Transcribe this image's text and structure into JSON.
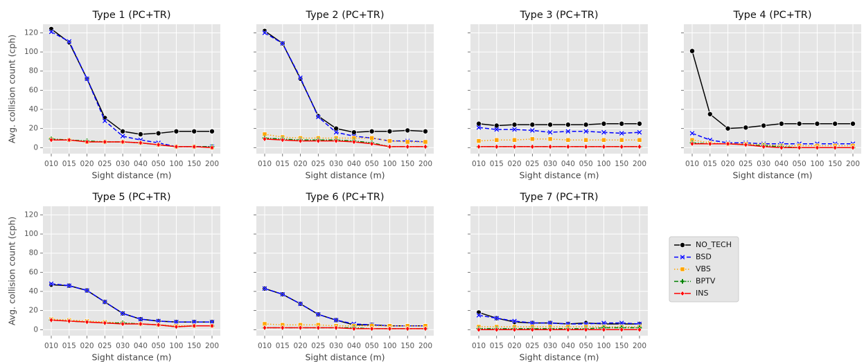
{
  "chart_data": [
    {
      "type": "line",
      "title": "Type 1 (PC+TR)",
      "xlabel": "Sight distance (m)",
      "ylabel": "Avg. collision count (cph)",
      "categories": [
        "010",
        "015",
        "020",
        "025",
        "030",
        "040",
        "050",
        "100",
        "150",
        "200"
      ],
      "ylim": [
        -6.3,
        129
      ],
      "yticks": [
        0,
        20,
        40,
        60,
        80,
        100,
        120
      ],
      "grid": true,
      "series": [
        {
          "name": "NO_TECH",
          "color": "#000000",
          "marker": "circle",
          "linestyle": "solid",
          "values": [
            124,
            110,
            72,
            31,
            17,
            14,
            15,
            17,
            17,
            17
          ]
        },
        {
          "name": "BSD",
          "color": "#0000ff",
          "marker": "x",
          "linestyle": "dashed",
          "values": [
            121,
            111,
            72,
            28,
            12,
            8,
            5,
            1,
            1,
            1
          ]
        },
        {
          "name": "VBS",
          "color": "#ffa500",
          "marker": "square",
          "linestyle": "dotted",
          "values": [
            9,
            8,
            6,
            6,
            6,
            5,
            3,
            1,
            1,
            0
          ]
        },
        {
          "name": "BPTV",
          "color": "#008000",
          "marker": "plus",
          "linestyle": "dashdot",
          "values": [
            9,
            8,
            7,
            6,
            6,
            5,
            3,
            1,
            1,
            1
          ]
        },
        {
          "name": "INS",
          "color": "#ff0000",
          "marker": "diamond",
          "linestyle": "solid",
          "values": [
            8,
            8,
            6,
            6,
            6,
            5,
            3,
            1,
            1,
            0
          ]
        }
      ]
    },
    {
      "type": "line",
      "title": "Type 2 (PC+TR)",
      "xlabel": "Sight distance (m)",
      "categories": [
        "010",
        "015",
        "020",
        "025",
        "030",
        "040",
        "050",
        "100",
        "150",
        "200"
      ],
      "ylim": [
        -6.3,
        129
      ],
      "yticks": [
        0,
        20,
        40,
        60,
        80,
        100,
        120
      ],
      "grid": true,
      "series": [
        {
          "name": "NO_TECH",
          "color": "#000000",
          "marker": "circle",
          "linestyle": "solid",
          "values": [
            122,
            109,
            72,
            33,
            20,
            16,
            17,
            17,
            18,
            17
          ]
        },
        {
          "name": "BSD",
          "color": "#0000ff",
          "marker": "x",
          "linestyle": "dashed",
          "values": [
            120,
            109,
            73,
            32,
            16,
            12,
            10,
            7,
            7,
            6
          ]
        },
        {
          "name": "VBS",
          "color": "#ffa500",
          "marker": "square",
          "linestyle": "dotted",
          "values": [
            14,
            11,
            10,
            10,
            10,
            10,
            10,
            7,
            6,
            6
          ]
        },
        {
          "name": "BPTV",
          "color": "#008000",
          "marker": "plus",
          "linestyle": "dashdot",
          "values": [
            10,
            9,
            8,
            8,
            8,
            7,
            5,
            1,
            1,
            1
          ]
        },
        {
          "name": "INS",
          "color": "#ff0000",
          "marker": "diamond",
          "linestyle": "solid",
          "values": [
            9,
            8,
            7,
            7,
            7,
            6,
            4,
            1,
            1,
            1
          ]
        }
      ]
    },
    {
      "type": "line",
      "title": "Type 3 (PC+TR)",
      "xlabel": "Sight distance (m)",
      "categories": [
        "010",
        "015",
        "020",
        "025",
        "030",
        "040",
        "050",
        "100",
        "150",
        "200"
      ],
      "ylim": [
        -6.3,
        129
      ],
      "yticks": [
        0,
        20,
        40,
        60,
        80,
        100,
        120
      ],
      "grid": true,
      "series": [
        {
          "name": "NO_TECH",
          "color": "#000000",
          "marker": "circle",
          "linestyle": "solid",
          "values": [
            25,
            23,
            24,
            24,
            24,
            24,
            24,
            25,
            25,
            25
          ]
        },
        {
          "name": "BSD",
          "color": "#0000ff",
          "marker": "x",
          "linestyle": "dashed",
          "values": [
            21,
            19,
            19,
            18,
            16,
            17,
            17,
            16,
            15,
            16
          ]
        },
        {
          "name": "VBS",
          "color": "#ffa500",
          "marker": "square",
          "linestyle": "dotted",
          "values": [
            7,
            8,
            8,
            9,
            9,
            8,
            8,
            8,
            8,
            8
          ]
        },
        {
          "name": "BPTV",
          "color": "#008000",
          "marker": "plus",
          "linestyle": "dashdot",
          "values": [
            1,
            1,
            1,
            1,
            1,
            1,
            1,
            1,
            1,
            1
          ]
        },
        {
          "name": "INS",
          "color": "#ff0000",
          "marker": "diamond",
          "linestyle": "solid",
          "values": [
            1,
            1,
            1,
            1,
            1,
            1,
            1,
            1,
            1,
            1
          ]
        }
      ]
    },
    {
      "type": "line",
      "title": "Type 4 (PC+TR)",
      "xlabel": "Sight distance (m)",
      "categories": [
        "010",
        "015",
        "020",
        "025",
        "030",
        "040",
        "050",
        "100",
        "150",
        "200"
      ],
      "ylim": [
        -6.3,
        129
      ],
      "yticks": [
        0,
        20,
        40,
        60,
        80,
        100,
        120
      ],
      "grid": true,
      "series": [
        {
          "name": "NO_TECH",
          "color": "#000000",
          "marker": "circle",
          "linestyle": "solid",
          "values": [
            101,
            35,
            20,
            21,
            23,
            25,
            25,
            25,
            25,
            25
          ]
        },
        {
          "name": "BSD",
          "color": "#0000ff",
          "marker": "x",
          "linestyle": "dashed",
          "values": [
            15,
            8,
            5,
            5,
            4,
            4,
            4,
            4,
            4,
            4
          ]
        },
        {
          "name": "VBS",
          "color": "#ffa500",
          "marker": "square",
          "linestyle": "dotted",
          "values": [
            8,
            5,
            4,
            4,
            3,
            2,
            2,
            2,
            2,
            2
          ]
        },
        {
          "name": "BPTV",
          "color": "#008000",
          "marker": "plus",
          "linestyle": "dashdot",
          "values": [
            5,
            4,
            4,
            3,
            2,
            1,
            0,
            0,
            0,
            0
          ]
        },
        {
          "name": "INS",
          "color": "#ff0000",
          "marker": "diamond",
          "linestyle": "solid",
          "values": [
            4,
            4,
            4,
            3,
            1,
            0,
            0,
            0,
            0,
            0
          ]
        }
      ]
    },
    {
      "type": "line",
      "title": "Type 5 (PC+TR)",
      "xlabel": "Sight distance (m)",
      "ylabel": "Avg. collision count (cph)",
      "categories": [
        "010",
        "015",
        "020",
        "025",
        "030",
        "040",
        "050",
        "100",
        "150",
        "200"
      ],
      "ylim": [
        -6.3,
        129
      ],
      "yticks": [
        0,
        20,
        40,
        60,
        80,
        100,
        120
      ],
      "grid": true,
      "series": [
        {
          "name": "NO_TECH",
          "color": "#000000",
          "marker": "circle",
          "linestyle": "solid",
          "values": [
            47,
            46,
            41,
            29,
            17,
            11,
            9,
            8,
            8,
            8
          ]
        },
        {
          "name": "BSD",
          "color": "#0000ff",
          "marker": "x",
          "linestyle": "dashed",
          "values": [
            48,
            46,
            41,
            29,
            17,
            11,
            9,
            8,
            8,
            8
          ]
        },
        {
          "name": "VBS",
          "color": "#ffa500",
          "marker": "square",
          "linestyle": "dotted",
          "values": [
            11,
            10,
            9,
            8,
            7,
            6,
            5,
            4,
            4,
            4
          ]
        },
        {
          "name": "BPTV",
          "color": "#008000",
          "marker": "plus",
          "linestyle": "dashdot",
          "values": [
            10,
            9,
            8,
            7,
            7,
            6,
            5,
            3,
            4,
            4
          ]
        },
        {
          "name": "INS",
          "color": "#ff0000",
          "marker": "diamond",
          "linestyle": "solid",
          "values": [
            10,
            9,
            8,
            7,
            6,
            6,
            5,
            3,
            4,
            4
          ]
        }
      ]
    },
    {
      "type": "line",
      "title": "Type 6 (PC+TR)",
      "xlabel": "Sight distance (m)",
      "categories": [
        "010",
        "015",
        "020",
        "025",
        "030",
        "040",
        "050",
        "100",
        "150",
        "200"
      ],
      "ylim": [
        -6.3,
        129
      ],
      "yticks": [
        0,
        20,
        40,
        60,
        80,
        100,
        120
      ],
      "grid": true,
      "series": [
        {
          "name": "NO_TECH",
          "color": "#000000",
          "marker": "circle",
          "linestyle": "solid",
          "values": [
            43,
            37,
            27,
            16,
            10,
            5,
            5,
            4,
            4,
            4
          ]
        },
        {
          "name": "BSD",
          "color": "#0000ff",
          "marker": "x",
          "linestyle": "dashed",
          "values": [
            43,
            37,
            27,
            16,
            10,
            6,
            5,
            4,
            4,
            4
          ]
        },
        {
          "name": "VBS",
          "color": "#ffa500",
          "marker": "square",
          "linestyle": "dotted",
          "values": [
            6,
            5,
            5,
            5,
            4,
            4,
            4,
            4,
            4,
            4
          ]
        },
        {
          "name": "BPTV",
          "color": "#008000",
          "marker": "plus",
          "linestyle": "dashdot",
          "values": [
            2,
            2,
            2,
            2,
            2,
            2,
            1,
            1,
            1,
            1
          ]
        },
        {
          "name": "INS",
          "color": "#ff0000",
          "marker": "diamond",
          "linestyle": "solid",
          "values": [
            2,
            2,
            2,
            2,
            2,
            1,
            1,
            1,
            1,
            1
          ]
        }
      ]
    },
    {
      "type": "line",
      "title": "Type 7 (PC+TR)",
      "xlabel": "Sight distance (m)",
      "categories": [
        "010",
        "015",
        "020",
        "025",
        "030",
        "040",
        "050",
        "100",
        "150",
        "200"
      ],
      "ylim": [
        -6.3,
        129
      ],
      "yticks": [
        0,
        20,
        40,
        60,
        80,
        100,
        120
      ],
      "grid": true,
      "series": [
        {
          "name": "NO_TECH",
          "color": "#000000",
          "marker": "circle",
          "linestyle": "solid",
          "values": [
            18,
            12,
            8,
            7,
            7,
            6,
            7,
            6,
            6,
            6
          ]
        },
        {
          "name": "BSD",
          "color": "#0000ff",
          "marker": "x",
          "linestyle": "dashed",
          "values": [
            15,
            12,
            9,
            7,
            7,
            6,
            6,
            7,
            7,
            6
          ]
        },
        {
          "name": "VBS",
          "color": "#ffa500",
          "marker": "square",
          "linestyle": "dotted",
          "values": [
            3,
            3,
            3,
            3,
            3,
            3,
            3,
            3,
            3,
            3
          ]
        },
        {
          "name": "BPTV",
          "color": "#008000",
          "marker": "plus",
          "linestyle": "dashdot",
          "values": [
            1,
            1,
            1,
            1,
            1,
            1,
            1,
            2,
            2,
            2
          ]
        },
        {
          "name": "INS",
          "color": "#ff0000",
          "marker": "diamond",
          "linestyle": "solid",
          "values": [
            0,
            0,
            0,
            0,
            0,
            0,
            0,
            0,
            0,
            0
          ]
        }
      ]
    }
  ]
}
